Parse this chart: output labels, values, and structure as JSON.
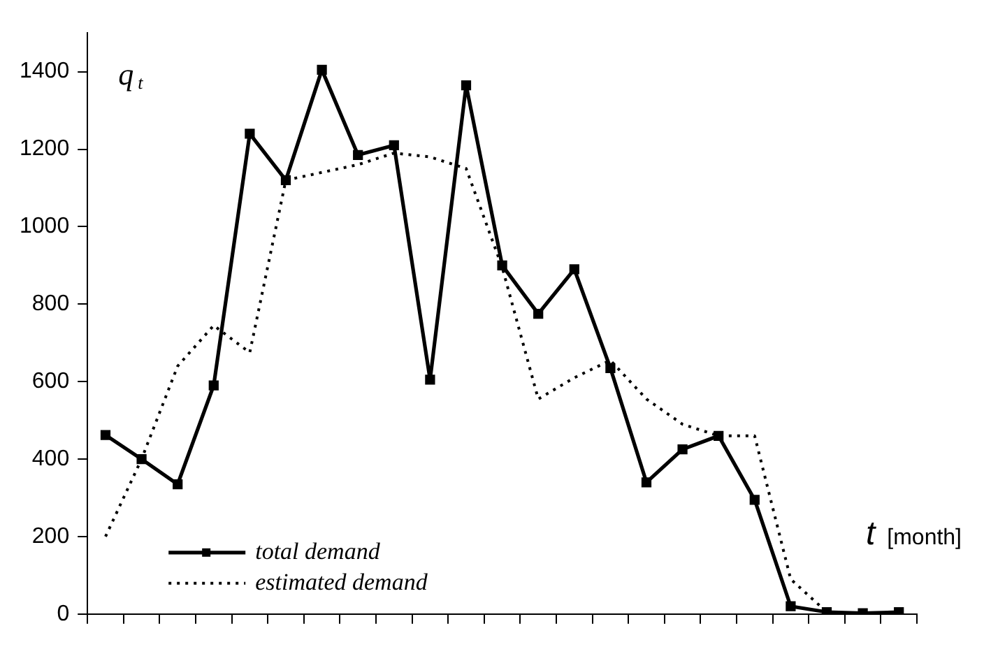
{
  "chart_data": {
    "type": "line",
    "xlabel": "t [month]",
    "ylabel": "q$_{t}$",
    "categories": [
      null,
      null,
      null,
      null,
      null,
      null,
      null,
      null,
      null,
      null,
      null,
      null,
      null,
      null,
      null,
      null,
      null,
      null,
      null,
      null,
      null,
      null,
      null
    ],
    "series": [
      {
        "name": "total demand",
        "color": "#000000",
        "marker": "square",
        "line_style": "solid",
        "values": [
          462,
          400,
          335,
          590,
          1240,
          1120,
          1405,
          1185,
          1210,
          605,
          1365,
          900,
          775,
          890,
          635,
          340,
          425,
          460,
          295,
          20,
          5,
          2,
          5
        ]
      },
      {
        "name": "estimated demand",
        "color": "#000000",
        "marker": "none",
        "line_style": "dotted",
        "values": [
          200,
          400,
          640,
          745,
          675,
          1120,
          1140,
          1160,
          1190,
          1180,
          1150,
          895,
          555,
          610,
          655,
          555,
          490,
          460,
          460,
          90,
          5,
          0,
          0
        ]
      }
    ],
    "ylim": [
      0,
      1500
    ],
    "yticks": [
      0,
      200,
      400,
      600,
      800,
      1000,
      1200,
      1400
    ],
    "grid": false,
    "legend": "bottom left",
    "tick_labels": "y"
  }
}
